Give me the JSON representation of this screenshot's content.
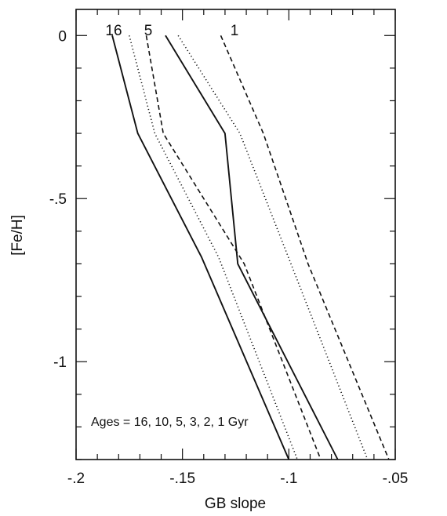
{
  "chart_data": {
    "type": "line",
    "xlabel": "GB slope",
    "ylabel": "[Fe/H]",
    "xlim": [
      -0.2,
      -0.05
    ],
    "ylim": [
      -1.3,
      0.08
    ],
    "x_ticks": [
      "-.2",
      "-.15",
      "-.1",
      "-.05"
    ],
    "y_ticks": [
      "0",
      "-.5",
      "-1"
    ],
    "annotation": "Ages = 16, 10, 5, 3, 2, 1 Gyr",
    "age_labels": [
      "16",
      "5",
      "1"
    ],
    "series": [
      {
        "name": "16",
        "style": "solid",
        "x": [
          -0.183,
          -0.171,
          -0.141,
          -0.1
        ],
        "y": [
          0,
          -0.3,
          -0.68,
          -1.3
        ]
      },
      {
        "name": "10",
        "style": "dotted",
        "x": [
          -0.175,
          -0.163,
          -0.133,
          -0.096
        ],
        "y": [
          0,
          -0.3,
          -0.68,
          -1.3
        ]
      },
      {
        "name": "5",
        "style": "dashed",
        "x": [
          -0.167,
          -0.159,
          -0.121,
          -0.085
        ],
        "y": [
          0,
          -0.3,
          -0.7,
          -1.3
        ]
      },
      {
        "name": "3",
        "style": "solid",
        "x": [
          -0.158,
          -0.13,
          -0.124,
          -0.077
        ],
        "y": [
          0,
          -0.3,
          -0.7,
          -1.3
        ]
      },
      {
        "name": "2",
        "style": "dotted",
        "x": [
          -0.152,
          -0.123,
          -0.099,
          -0.063
        ],
        "y": [
          0,
          -0.3,
          -0.7,
          -1.3
        ]
      },
      {
        "name": "1",
        "style": "dashed",
        "x": [
          -0.132,
          -0.112,
          -0.091,
          -0.053
        ],
        "y": [
          0,
          -0.3,
          -0.7,
          -1.3
        ]
      }
    ]
  }
}
